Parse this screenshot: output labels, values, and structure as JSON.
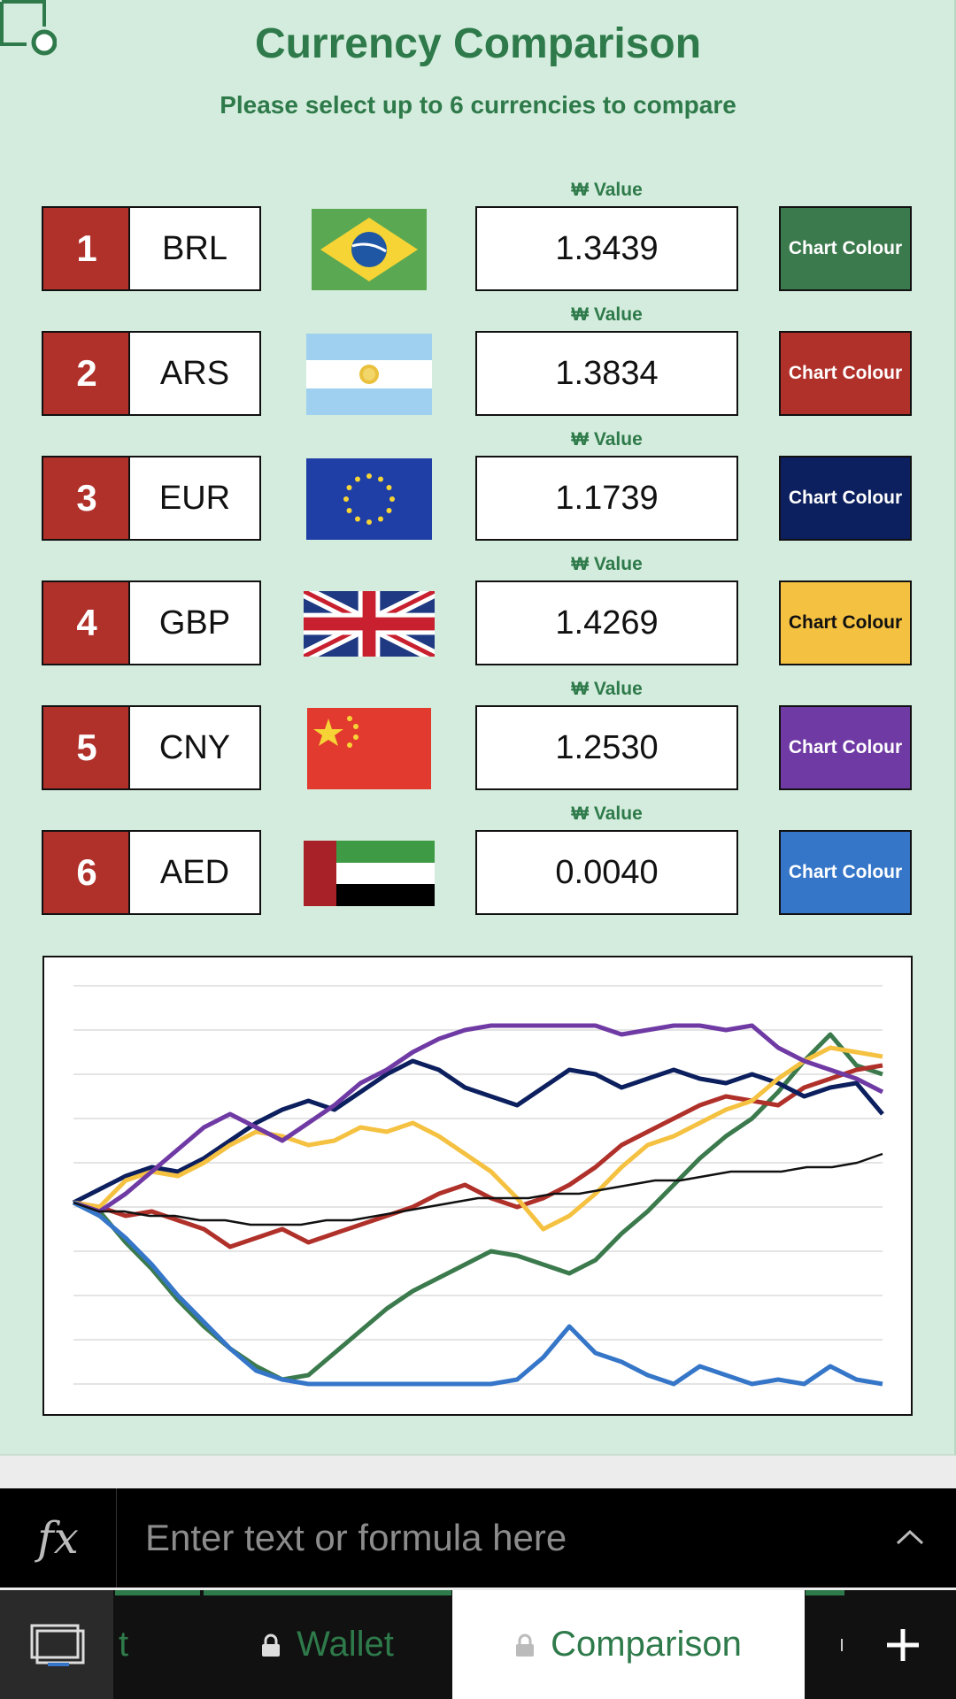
{
  "title": "Currency Comparison",
  "subtitle": "Please select up to 6 currencies to compare",
  "value_label": "₩ Value",
  "rows": [
    {
      "num": "1",
      "code": "BRL",
      "value": "1.3439",
      "colour_label": "Chart Colour",
      "colour": "#3b7a4c",
      "text_color": "#ffffff"
    },
    {
      "num": "2",
      "code": "ARS",
      "value": "1.3834",
      "colour_label": "Chart Colour",
      "colour": "#b0302a",
      "text_color": "#ffffff"
    },
    {
      "num": "3",
      "code": "EUR",
      "value": "1.1739",
      "colour_label": "Chart Colour",
      "colour": "#0c1f5e",
      "text_color": "#ffffff"
    },
    {
      "num": "4",
      "code": "GBP",
      "value": "1.4269",
      "colour_label": "Chart Colour",
      "colour": "#f5c141",
      "text_color": "#111111"
    },
    {
      "num": "5",
      "code": "CNY",
      "value": "1.2530",
      "colour_label": "Chart Colour",
      "colour": "#6f3aa4",
      "text_color": "#ffffff"
    },
    {
      "num": "6",
      "code": "AED",
      "value": "0.0040",
      "colour_label": "Chart Colour",
      "colour": "#3576c8",
      "text_color": "#ffffff"
    }
  ],
  "chart_data": {
    "type": "line",
    "title": "",
    "grid": true,
    "legend": "none",
    "ylim": [
      0,
      9
    ],
    "series": [
      {
        "color": "#3b7a4c",
        "values": [
          4.1,
          3.9,
          3.2,
          2.6,
          1.9,
          1.3,
          0.8,
          0.4,
          0.1,
          0.2,
          0.7,
          1.2,
          1.7,
          2.1,
          2.4,
          2.7,
          3.0,
          2.9,
          2.7,
          2.5,
          2.8,
          3.4,
          3.9,
          4.5,
          5.1,
          5.6,
          6.0,
          6.6,
          7.3,
          7.9,
          7.2,
          7.0
        ]
      },
      {
        "color": "#b0302a",
        "values": [
          4.1,
          4.0,
          3.8,
          3.9,
          3.7,
          3.5,
          3.1,
          3.3,
          3.5,
          3.2,
          3.4,
          3.6,
          3.8,
          4.0,
          4.3,
          4.5,
          4.2,
          4.0,
          4.2,
          4.5,
          4.9,
          5.4,
          5.7,
          6.0,
          6.3,
          6.5,
          6.4,
          6.3,
          6.7,
          6.9,
          7.1,
          7.2
        ]
      },
      {
        "color": "#0c1f5e",
        "values": [
          4.1,
          4.4,
          4.7,
          4.9,
          4.8,
          5.1,
          5.5,
          5.9,
          6.2,
          6.4,
          6.2,
          6.6,
          7.0,
          7.3,
          7.1,
          6.7,
          6.5,
          6.3,
          6.7,
          7.1,
          7.0,
          6.7,
          6.9,
          7.1,
          6.9,
          6.8,
          7.0,
          6.8,
          6.5,
          6.7,
          6.8,
          6.1
        ]
      },
      {
        "color": "#f5c141",
        "values": [
          4.1,
          4.0,
          4.6,
          4.8,
          4.7,
          5.0,
          5.4,
          5.7,
          5.6,
          5.4,
          5.5,
          5.8,
          5.7,
          5.9,
          5.6,
          5.2,
          4.8,
          4.2,
          3.5,
          3.8,
          4.3,
          4.9,
          5.4,
          5.6,
          5.9,
          6.2,
          6.4,
          6.9,
          7.3,
          7.6,
          7.5,
          7.4
        ]
      },
      {
        "color": "#6f3aa4",
        "values": [
          4.1,
          3.9,
          4.3,
          4.8,
          5.3,
          5.8,
          6.1,
          5.8,
          5.5,
          5.9,
          6.3,
          6.8,
          7.1,
          7.5,
          7.8,
          8.0,
          8.1,
          8.1,
          8.1,
          8.1,
          8.1,
          7.9,
          8.0,
          8.1,
          8.1,
          8.0,
          8.1,
          7.6,
          7.3,
          7.1,
          6.9,
          6.6
        ]
      },
      {
        "color": "#3576c8",
        "values": [
          4.1,
          3.8,
          3.3,
          2.7,
          2.0,
          1.4,
          0.8,
          0.3,
          0.1,
          0.0,
          0.0,
          0.0,
          0.0,
          0.0,
          0.0,
          0.0,
          0.0,
          0.1,
          0.6,
          1.3,
          0.7,
          0.5,
          0.2,
          0.0,
          0.4,
          0.2,
          0.0,
          0.1,
          0.0,
          0.4,
          0.1,
          0.0
        ]
      },
      {
        "color": "#111111",
        "values": [
          4.1,
          3.9,
          3.9,
          3.8,
          3.8,
          3.7,
          3.7,
          3.6,
          3.6,
          3.6,
          3.7,
          3.7,
          3.8,
          3.9,
          4.0,
          4.1,
          4.2,
          4.2,
          4.2,
          4.3,
          4.3,
          4.4,
          4.5,
          4.6,
          4.6,
          4.7,
          4.8,
          4.8,
          4.8,
          4.9,
          4.9,
          5.0,
          5.2
        ]
      }
    ]
  },
  "formula": {
    "fx": "fx",
    "placeholder": "Enter text or formula here"
  },
  "tabs": [
    {
      "label": "t"
    },
    {
      "label": "Wallet"
    },
    {
      "label": "Comparison"
    }
  ],
  "icons": {
    "sheet_nav": "sheet-list-icon",
    "add": "plus-icon",
    "lock": "lock-icon",
    "expand": "chevron-up-icon"
  }
}
